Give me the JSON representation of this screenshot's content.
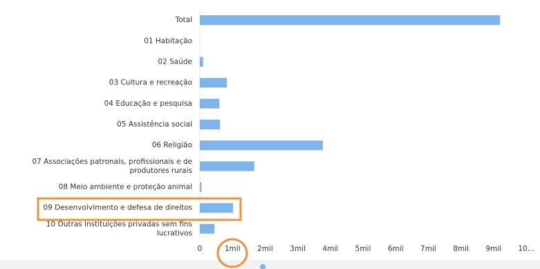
{
  "chart_data": {
    "type": "bar",
    "orientation": "horizontal",
    "categories": [
      "Total",
      "01 Habitação",
      "02 Saúde",
      "03 Cultura e recreação",
      "04 Educação e pesquisa",
      "05 Assistência social",
      "06 Religião",
      "07 Associações patronais, profissionais e de produtores rurais",
      "08 Meio ambiente e proteção animal",
      "09 Desenvolvimento e defesa de direitos",
      "10 Outras instituições privadas sem fins lucrativos"
    ],
    "values": [
      9200,
      0,
      100,
      830,
      600,
      620,
      3770,
      1670,
      50,
      1020,
      450
    ],
    "color": "#7cb5ec",
    "xlim": [
      0,
      10000
    ],
    "xticks": [
      0,
      {
        "value": 1000,
        "label": "1mil"
      },
      {
        "value": 2000,
        "label": "2mil"
      },
      {
        "value": 3000,
        "label": "3mil"
      },
      {
        "value": 4000,
        "label": "4mil"
      },
      {
        "value": 5000,
        "label": "5mil"
      },
      {
        "value": 6000,
        "label": "6mil"
      },
      {
        "value": 7000,
        "label": "7mil"
      },
      {
        "value": 8000,
        "label": "8mil"
      },
      {
        "value": 9000,
        "label": "9mil"
      },
      {
        "value": 10000,
        "label": "10..."
      }
    ]
  }
}
